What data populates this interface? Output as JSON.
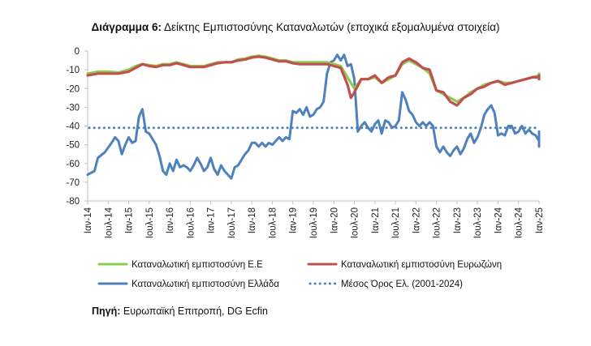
{
  "chart_data": {
    "type": "line",
    "title_label": "Διάγραμμα 6:",
    "title": "Δείκτης Εμπιστοσύνης Καταναλωτών (εποχικά εξομαλυμένα στοιχεία)",
    "xlabel": "",
    "ylabel": "",
    "ylim": [
      -80,
      0
    ],
    "y_ticks": [
      0,
      -10,
      -20,
      -30,
      -40,
      -50,
      -60,
      -70,
      -80
    ],
    "x_ticks": [
      "Ιαν-14",
      "Ιουλ-14",
      "Ιαν-15",
      "Ιουλ-15",
      "Ιαν-16",
      "Ιουλ-16",
      "Ιαν-17",
      "Ιουλ-17",
      "Ιαν-18",
      "Ιουλ-18",
      "Ιαν-19",
      "Ιουλ-19",
      "Ιαν-20",
      "Ιουλ-20",
      "Ιαν-21",
      "Ιουλ-21",
      "Ιαν-22",
      "Ιουλ-22",
      "Ιαν-23",
      "Ιουλ-23",
      "Ιαν-24",
      "Ιουλ-24",
      "Ιαν-25"
    ],
    "x_start": "2014-01",
    "x_end": "2025-01",
    "grid": false,
    "legend_position": "bottom",
    "series": [
      {
        "name": "Καταναλωτική εμπιστοσύνη Ε.Ε",
        "color": "#8dcc52",
        "style": "solid",
        "points": [
          [
            0,
            -12
          ],
          [
            3,
            -11
          ],
          [
            6,
            -11
          ],
          [
            9,
            -11.5
          ],
          [
            12,
            -10
          ],
          [
            14,
            -8
          ],
          [
            16,
            -7
          ],
          [
            18,
            -7.5
          ],
          [
            20,
            -8
          ],
          [
            22,
            -7
          ],
          [
            24,
            -7
          ],
          [
            26,
            -6
          ],
          [
            28,
            -7
          ],
          [
            30,
            -8
          ],
          [
            32,
            -8
          ],
          [
            34,
            -8
          ],
          [
            36,
            -7
          ],
          [
            38,
            -6
          ],
          [
            40,
            -6
          ],
          [
            42,
            -6
          ],
          [
            44,
            -4.5
          ],
          [
            46,
            -4
          ],
          [
            48,
            -3
          ],
          [
            50,
            -2.5
          ],
          [
            52,
            -3
          ],
          [
            54,
            -4
          ],
          [
            56,
            -5
          ],
          [
            58,
            -5
          ],
          [
            60,
            -6
          ],
          [
            62,
            -6
          ],
          [
            64,
            -6
          ],
          [
            66,
            -6
          ],
          [
            68,
            -6
          ],
          [
            70,
            -6
          ],
          [
            72,
            -7
          ],
          [
            74,
            -8
          ],
          [
            76,
            -14
          ],
          [
            78,
            -20
          ],
          [
            80,
            -15
          ],
          [
            82,
            -15
          ],
          [
            84,
            -14
          ],
          [
            86,
            -17
          ],
          [
            88,
            -15
          ],
          [
            90,
            -13
          ],
          [
            92,
            -7
          ],
          [
            94,
            -5
          ],
          [
            96,
            -7
          ],
          [
            98,
            -9
          ],
          [
            100,
            -12
          ],
          [
            102,
            -21
          ],
          [
            104,
            -23
          ],
          [
            106,
            -25
          ],
          [
            108,
            -27
          ],
          [
            110,
            -25
          ],
          [
            112,
            -22
          ],
          [
            114,
            -20
          ],
          [
            116,
            -18
          ],
          [
            118,
            -17
          ],
          [
            120,
            -16
          ],
          [
            122,
            -17
          ],
          [
            124,
            -17
          ],
          [
            126,
            -16
          ],
          [
            128,
            -15
          ],
          [
            130,
            -14
          ],
          [
            132,
            -13
          ],
          [
            134,
            -12
          ],
          [
            136,
            -12
          ],
          [
            138,
            -13
          ],
          [
            140,
            -14
          ],
          [
            141,
            -14
          ]
        ]
      },
      {
        "name": "Καταναλωτική εμπιστοσύνη Ευρωζώνη",
        "color": "#c0504d",
        "style": "solid",
        "points": [
          [
            0,
            -13
          ],
          [
            3,
            -12
          ],
          [
            6,
            -12
          ],
          [
            9,
            -12
          ],
          [
            12,
            -11
          ],
          [
            14,
            -9
          ],
          [
            16,
            -7
          ],
          [
            18,
            -8
          ],
          [
            20,
            -8.5
          ],
          [
            22,
            -7.5
          ],
          [
            24,
            -7.5
          ],
          [
            26,
            -6.5
          ],
          [
            28,
            -7.5
          ],
          [
            30,
            -8.5
          ],
          [
            32,
            -8.5
          ],
          [
            34,
            -8.5
          ],
          [
            36,
            -7.5
          ],
          [
            38,
            -6.5
          ],
          [
            40,
            -6
          ],
          [
            42,
            -6
          ],
          [
            44,
            -5
          ],
          [
            46,
            -4.5
          ],
          [
            48,
            -3.5
          ],
          [
            50,
            -3
          ],
          [
            52,
            -3.5
          ],
          [
            54,
            -4.5
          ],
          [
            56,
            -5.5
          ],
          [
            58,
            -5.5
          ],
          [
            60,
            -6.5
          ],
          [
            62,
            -7
          ],
          [
            64,
            -7
          ],
          [
            66,
            -7
          ],
          [
            68,
            -7
          ],
          [
            70,
            -7
          ],
          [
            72,
            -8
          ],
          [
            74,
            -9
          ],
          [
            76,
            -18
          ],
          [
            77,
            -25
          ],
          [
            78,
            -22
          ],
          [
            80,
            -15
          ],
          [
            82,
            -15
          ],
          [
            84,
            -13
          ],
          [
            86,
            -17
          ],
          [
            88,
            -14
          ],
          [
            90,
            -13
          ],
          [
            92,
            -6
          ],
          [
            94,
            -4
          ],
          [
            96,
            -6
          ],
          [
            98,
            -9
          ],
          [
            100,
            -10
          ],
          [
            102,
            -21
          ],
          [
            104,
            -22
          ],
          [
            106,
            -27
          ],
          [
            108,
            -29
          ],
          [
            110,
            -25
          ],
          [
            112,
            -23
          ],
          [
            114,
            -20
          ],
          [
            116,
            -19
          ],
          [
            118,
            -17
          ],
          [
            120,
            -16
          ],
          [
            122,
            -18
          ],
          [
            124,
            -17
          ],
          [
            126,
            -16
          ],
          [
            128,
            -15
          ],
          [
            130,
            -14
          ],
          [
            132,
            -14
          ],
          [
            134,
            -13
          ],
          [
            136,
            -13
          ],
          [
            138,
            -14
          ],
          [
            140,
            -15
          ],
          [
            141,
            -15
          ]
        ]
      },
      {
        "name": "Καταναλωτική εμπιστοσύνη Ελλάδα",
        "color": "#4f81bd",
        "style": "solid",
        "points": [
          [
            0,
            -66
          ],
          [
            2,
            -64
          ],
          [
            3,
            -57
          ],
          [
            5,
            -54
          ],
          [
            7,
            -49
          ],
          [
            8,
            -46
          ],
          [
            9,
            -48
          ],
          [
            10,
            -55
          ],
          [
            11,
            -50
          ],
          [
            12,
            -46
          ],
          [
            13,
            -49
          ],
          [
            14,
            -48
          ],
          [
            15,
            -35
          ],
          [
            16,
            -31
          ],
          [
            17,
            -43
          ],
          [
            18,
            -44
          ],
          [
            20,
            -50
          ],
          [
            21,
            -56
          ],
          [
            22,
            -64
          ],
          [
            23,
            -66
          ],
          [
            24,
            -60
          ],
          [
            25,
            -64
          ],
          [
            26,
            -58
          ],
          [
            27,
            -62
          ],
          [
            28,
            -61
          ],
          [
            29,
            -62
          ],
          [
            30,
            -64
          ],
          [
            31,
            -61
          ],
          [
            32,
            -57
          ],
          [
            33,
            -60
          ],
          [
            34,
            -64
          ],
          [
            35,
            -62
          ],
          [
            36,
            -57
          ],
          [
            37,
            -63
          ],
          [
            38,
            -66
          ],
          [
            39,
            -61
          ],
          [
            40,
            -64
          ],
          [
            41,
            -66
          ],
          [
            42,
            -68
          ],
          [
            43,
            -62
          ],
          [
            44,
            -61
          ],
          [
            45,
            -58
          ],
          [
            46,
            -55
          ],
          [
            47,
            -53
          ],
          [
            48,
            -49
          ],
          [
            49,
            -49
          ],
          [
            50,
            -51
          ],
          [
            51,
            -49
          ],
          [
            52,
            -51
          ],
          [
            53,
            -49
          ],
          [
            54,
            -50
          ],
          [
            55,
            -48
          ],
          [
            56,
            -46
          ],
          [
            57,
            -48
          ],
          [
            58,
            -46
          ],
          [
            59,
            -47
          ],
          [
            60,
            -32
          ],
          [
            61,
            -33
          ],
          [
            62,
            -31
          ],
          [
            63,
            -34
          ],
          [
            64,
            -30
          ],
          [
            65,
            -35
          ],
          [
            66,
            -34
          ],
          [
            67,
            -31
          ],
          [
            68,
            -30
          ],
          [
            69,
            -27
          ],
          [
            70,
            -12
          ],
          [
            71,
            -6
          ],
          [
            72,
            -5
          ],
          [
            73,
            -2
          ],
          [
            74,
            -5
          ],
          [
            75,
            -2
          ],
          [
            76,
            -8
          ],
          [
            77,
            -7
          ],
          [
            78,
            -15
          ],
          [
            79,
            -43
          ],
          [
            80,
            -40
          ],
          [
            81,
            -38
          ],
          [
            82,
            -41
          ],
          [
            83,
            -43
          ],
          [
            84,
            -39
          ],
          [
            85,
            -37
          ],
          [
            86,
            -44
          ],
          [
            87,
            -37
          ],
          [
            88,
            -38
          ],
          [
            89,
            -41
          ],
          [
            90,
            -40
          ],
          [
            91,
            -37
          ],
          [
            92,
            -22
          ],
          [
            93,
            -26
          ],
          [
            94,
            -32
          ],
          [
            95,
            -34
          ],
          [
            96,
            -38
          ],
          [
            97,
            -40
          ],
          [
            98,
            -38
          ],
          [
            99,
            -40
          ],
          [
            100,
            -38
          ],
          [
            101,
            -40
          ],
          [
            102,
            -51
          ],
          [
            103,
            -54
          ],
          [
            104,
            -51
          ],
          [
            105,
            -54
          ],
          [
            106,
            -56
          ],
          [
            107,
            -53
          ],
          [
            108,
            -51
          ],
          [
            109,
            -55
          ],
          [
            110,
            -52
          ],
          [
            111,
            -47
          ],
          [
            112,
            -44
          ],
          [
            113,
            -49
          ],
          [
            114,
            -46
          ],
          [
            115,
            -41
          ],
          [
            116,
            -34
          ],
          [
            117,
            -31
          ],
          [
            118,
            -29
          ],
          [
            119,
            -33
          ],
          [
            120,
            -45
          ],
          [
            121,
            -44
          ],
          [
            122,
            -45
          ],
          [
            123,
            -40
          ],
          [
            124,
            -40
          ],
          [
            125,
            -44
          ],
          [
            126,
            -43
          ],
          [
            127,
            -40
          ],
          [
            128,
            -44
          ],
          [
            129,
            -42
          ],
          [
            130,
            -44
          ],
          [
            131,
            -45
          ],
          [
            132,
            -48
          ],
          [
            133,
            -51
          ],
          [
            134,
            -50
          ],
          [
            135,
            -49
          ],
          [
            136,
            -46
          ],
          [
            137,
            -45
          ],
          [
            138,
            -45
          ],
          [
            139,
            -44
          ],
          [
            140,
            -43
          ],
          [
            141,
            -43
          ]
        ]
      },
      {
        "name": "Μέσος Όρος Ελ. (2001-2024)",
        "color": "#4f81bd",
        "style": "dotted",
        "points": [
          [
            0,
            -41
          ],
          [
            141,
            -41
          ]
        ]
      }
    ]
  },
  "source": {
    "label": "Πηγή:",
    "text": "Ευρωπαϊκή Επιτροπή, DG Ecfin"
  }
}
